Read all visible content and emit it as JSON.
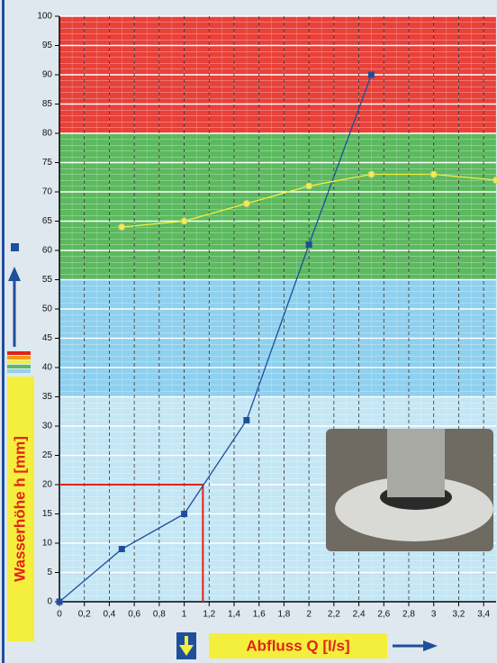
{
  "chart_data": {
    "type": "line",
    "x_label": "Abfluss Q [l/s]",
    "y_label": "Wasserhöhe h [mm]",
    "xlim": [
      0,
      3.5
    ],
    "ylim": [
      0,
      100
    ],
    "xticks": [
      0,
      {
        "value": 0.2,
        "label": "0,2"
      },
      {
        "value": 0.4,
        "label": "0,4"
      },
      {
        "value": 0.6,
        "label": "0,6"
      },
      {
        "value": 0.8,
        "label": "0,8"
      },
      1,
      {
        "value": 1.2,
        "label": "1,2"
      },
      {
        "value": 1.4,
        "label": "1,4"
      },
      {
        "value": 1.6,
        "label": "1,6"
      },
      {
        "value": 1.8,
        "label": "1,8"
      },
      2,
      {
        "value": 2.2,
        "label": "2,2"
      },
      {
        "value": 2.4,
        "label": "2,4"
      },
      {
        "value": 2.6,
        "label": "2,6"
      },
      {
        "value": 2.8,
        "label": "2,8"
      },
      3,
      {
        "value": 3.2,
        "label": "3,2"
      },
      {
        "value": 3.4,
        "label": "3,4"
      }
    ],
    "yticks": [
      0,
      5,
      10,
      15,
      20,
      25,
      30,
      35,
      40,
      45,
      50,
      55,
      60,
      65,
      70,
      75,
      80,
      85,
      90,
      95,
      100
    ],
    "grid": true,
    "zones": [
      {
        "from": 80,
        "to": 100,
        "color": "#e8413a"
      },
      {
        "from": 55,
        "to": 80,
        "color": "#5cb95f"
      },
      {
        "from": 35,
        "to": 55,
        "color": "#8fd0ee"
      },
      {
        "from": 0,
        "to": 35,
        "color": "#c4e6f5"
      }
    ],
    "reference": {
      "x": 1.15,
      "y": 20,
      "color": "#e2231a"
    },
    "series": [
      {
        "color": "#1f4e9c",
        "marker": "square",
        "x": [
          0,
          0.5,
          1,
          1.5,
          2,
          2.5
        ],
        "values": [
          0,
          9,
          15,
          31,
          61,
          90
        ]
      },
      {
        "color": "#f4ef3c",
        "marker": "circle",
        "x": [
          0.5,
          1,
          1.5,
          2,
          2.5,
          3,
          3.5
        ],
        "values": [
          64,
          65,
          68,
          71,
          73,
          73,
          72
        ]
      }
    ]
  }
}
